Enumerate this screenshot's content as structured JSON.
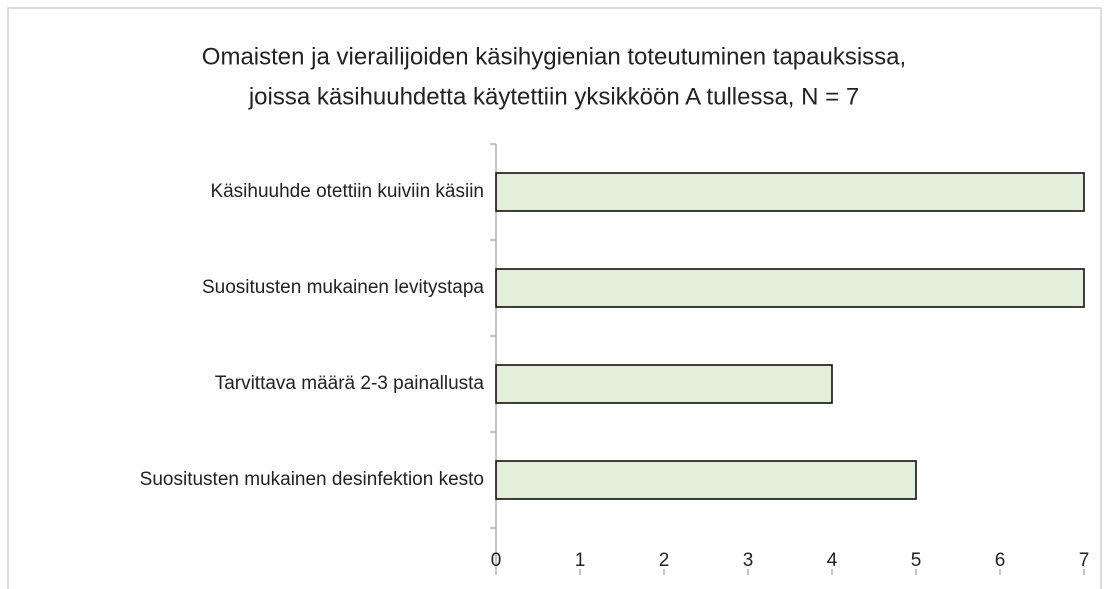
{
  "chart_data": {
    "type": "bar",
    "orientation": "horizontal",
    "title_lines": [
      "Omaisten ja vierailijoiden käsihygienian toteutuminen tapauksissa,",
      "joissa käsihuuhdetta käytettiin yksikköön A tullessa, N = 7"
    ],
    "categories": [
      "Käsihuuhde otettiin kuiviin käsiin",
      "Suositusten mukainen levitystapa",
      "Tarvittava määrä 2-3 painallusta",
      "Suositusten mukainen desinfektion kesto"
    ],
    "values": [
      7,
      7,
      4,
      5
    ],
    "color": "#e2efda",
    "xlim": [
      0,
      7
    ],
    "xticks": [
      0,
      1,
      2,
      3,
      4,
      5,
      6,
      7
    ],
    "grid": false
  }
}
